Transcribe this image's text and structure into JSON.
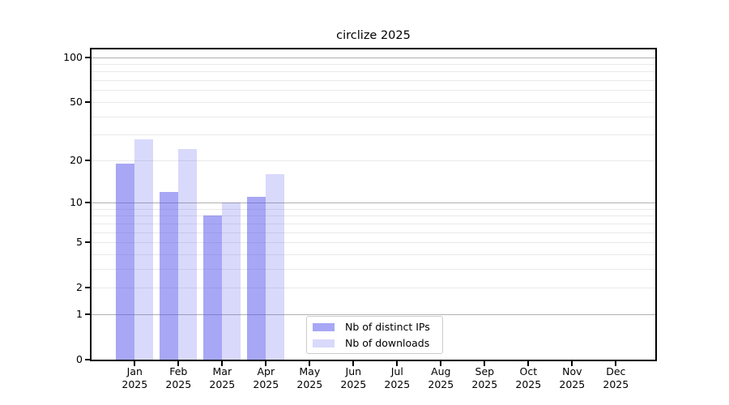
{
  "chart_data": {
    "type": "bar",
    "title": "circlize 2025",
    "months": [
      "Jan",
      "Feb",
      "Mar",
      "Apr",
      "May",
      "Jun",
      "Jul",
      "Aug",
      "Sep",
      "Oct",
      "Nov",
      "Dec"
    ],
    "year_label": "2025",
    "series": [
      {
        "name": "Nb of distinct IPs",
        "color": "rgba(80,80,235,0.5)",
        "values": [
          19,
          12,
          8,
          11,
          0,
          0,
          0,
          0,
          0,
          0,
          0,
          0
        ]
      },
      {
        "name": "Nb of downloads",
        "color": "rgba(80,80,235,0.22)",
        "values": [
          28,
          24,
          10,
          16,
          0,
          0,
          0,
          0,
          0,
          0,
          0,
          0
        ]
      }
    ],
    "y_axis": {
      "scale": "log1p",
      "ticks": [
        0,
        1,
        2,
        5,
        10,
        20,
        50,
        100
      ],
      "major_gridlines": [
        1,
        10,
        100
      ],
      "minor_gridlines": [
        2,
        3,
        4,
        5,
        6,
        7,
        8,
        9,
        20,
        30,
        40,
        50,
        60,
        70,
        80,
        90
      ],
      "range": [
        0,
        100
      ]
    },
    "legend": {
      "position": "lower-center-left",
      "labels": [
        "Nb of distinct IPs",
        "Nb of downloads"
      ]
    },
    "grid": true
  },
  "colors": {
    "bar_distinct_ips": "rgba(80,80,235,0.5)",
    "bar_downloads": "rgba(80,80,235,0.22)",
    "grid_major": "#b0b0b0",
    "grid_minor": "#e9e9e9",
    "spine": "#000000",
    "legend_border": "#cccccc"
  }
}
